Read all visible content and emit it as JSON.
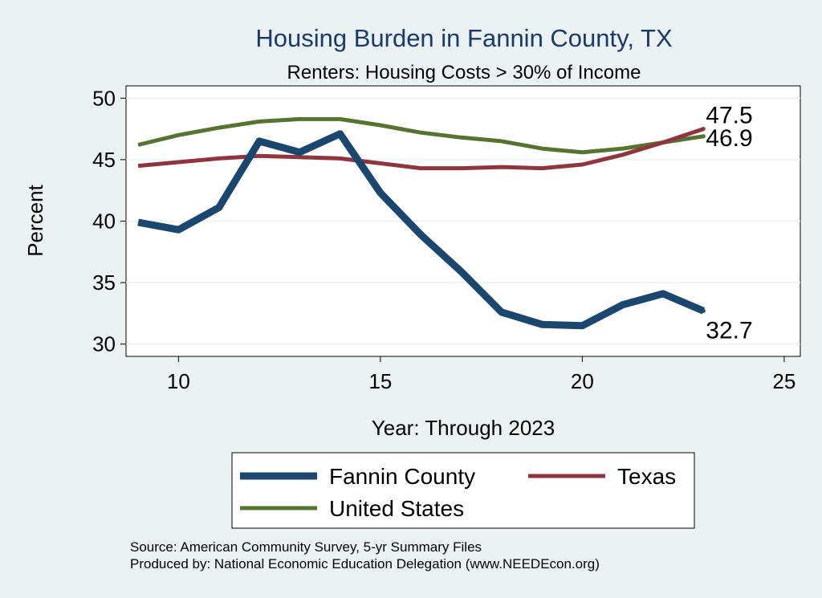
{
  "chart_data": {
    "type": "line",
    "title": "Housing Burden in Fannin County, TX",
    "subtitle": "Renters: Housing Costs > 30% of Income",
    "xlabel": "Year: Through 2023",
    "ylabel": "Percent",
    "xlim": [
      8.7,
      25.4
    ],
    "ylim": [
      29.0,
      51.0
    ],
    "xticks": [
      10,
      15,
      20,
      25
    ],
    "yticks": [
      30,
      35,
      40,
      45,
      50
    ],
    "grid": true,
    "x": [
      9,
      10,
      11,
      12,
      13,
      14,
      15,
      16,
      17,
      18,
      19,
      20,
      21,
      22,
      23
    ],
    "series": [
      {
        "name": "Fannin County",
        "color": "#1a476f",
        "values": [
          39.9,
          39.3,
          41.1,
          46.5,
          45.6,
          47.1,
          42.3,
          38.9,
          35.9,
          32.6,
          31.6,
          31.5,
          33.2,
          34.1,
          32.7
        ],
        "end_label": "32.7"
      },
      {
        "name": "Texas",
        "color": "#90353b",
        "values": [
          44.5,
          44.8,
          45.1,
          45.3,
          45.2,
          45.1,
          44.7,
          44.3,
          44.3,
          44.4,
          44.3,
          44.6,
          45.4,
          46.4,
          47.5
        ],
        "end_label": "47.5"
      },
      {
        "name": "United States",
        "color": "#55752f",
        "values": [
          46.2,
          47.0,
          47.6,
          48.1,
          48.3,
          48.3,
          47.8,
          47.2,
          46.8,
          46.5,
          45.9,
          45.6,
          45.9,
          46.4,
          46.9
        ],
        "end_label": "46.9"
      }
    ],
    "legend": {
      "position": "bottom",
      "entries": [
        "Fannin County",
        "Texas",
        "United States"
      ]
    }
  },
  "source": {
    "line1": "Source: American Community Survey, 5-yr Summary Files",
    "line2": "Produced by: National Economic Education Delegation (www.NEEDEcon.org)"
  }
}
